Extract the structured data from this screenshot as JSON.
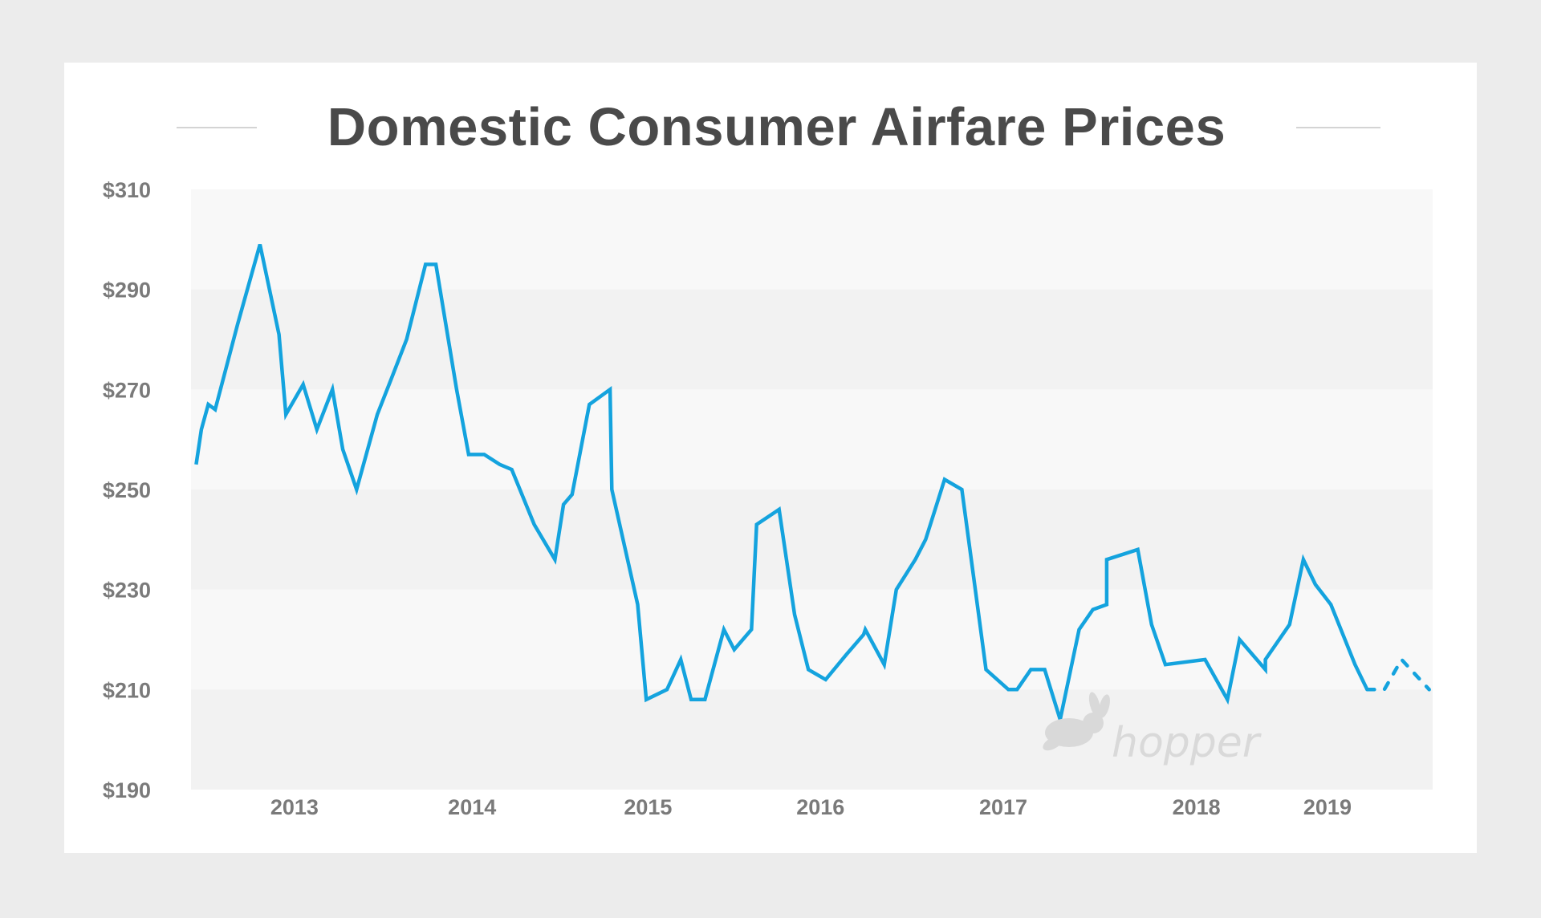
{
  "chart_data": {
    "type": "line",
    "title": "Domestic Consumer Airfare Prices",
    "xlabel": "",
    "ylabel": "",
    "ylim": [
      190,
      310
    ],
    "xlim": [
      2012.35,
      2019.55
    ],
    "y_ticks": [
      {
        "value": 190,
        "label": "$190"
      },
      {
        "value": 210,
        "label": "$210"
      },
      {
        "value": 230,
        "label": "$230"
      },
      {
        "value": 250,
        "label": "$250"
      },
      {
        "value": 270,
        "label": "$270"
      },
      {
        "value": 290,
        "label": "$290"
      },
      {
        "value": 310,
        "label": "$310"
      }
    ],
    "x_ticks": [
      {
        "value": 2012.95,
        "label": "2013"
      },
      {
        "value": 2013.98,
        "label": "2014"
      },
      {
        "value": 2015.0,
        "label": "2015"
      },
      {
        "value": 2016.0,
        "label": "2016"
      },
      {
        "value": 2017.06,
        "label": "2017"
      },
      {
        "value": 2018.18,
        "label": "2018"
      },
      {
        "value": 2018.94,
        "label": "2019"
      }
    ],
    "grid": "alternating horizontal bands",
    "legend": "none",
    "series": [
      {
        "style": "solid",
        "color": "#14a3de",
        "points": [
          [
            2012.38,
            255
          ],
          [
            2012.41,
            262
          ],
          [
            2012.45,
            267
          ],
          [
            2012.49,
            266
          ],
          [
            2012.62,
            283
          ],
          [
            2012.75,
            299
          ],
          [
            2012.86,
            281
          ],
          [
            2012.9,
            265
          ],
          [
            2013.0,
            271
          ],
          [
            2013.08,
            262
          ],
          [
            2013.17,
            270
          ],
          [
            2013.23,
            258
          ],
          [
            2013.31,
            250
          ],
          [
            2013.43,
            265
          ],
          [
            2013.51,
            272
          ],
          [
            2013.6,
            280
          ],
          [
            2013.71,
            295
          ],
          [
            2013.77,
            295
          ],
          [
            2013.89,
            270
          ],
          [
            2013.96,
            257
          ],
          [
            2014.05,
            257
          ],
          [
            2014.14,
            255
          ],
          [
            2014.21,
            254
          ],
          [
            2014.34,
            243
          ],
          [
            2014.46,
            236
          ],
          [
            2014.51,
            247
          ],
          [
            2014.56,
            249
          ],
          [
            2014.66,
            267
          ],
          [
            2014.78,
            270
          ],
          [
            2014.79,
            250
          ],
          [
            2014.94,
            227
          ],
          [
            2014.99,
            208
          ],
          [
            2015.11,
            210
          ],
          [
            2015.19,
            216
          ],
          [
            2015.25,
            208
          ],
          [
            2015.33,
            208
          ],
          [
            2015.44,
            222
          ],
          [
            2015.5,
            218
          ],
          [
            2015.6,
            222
          ],
          [
            2015.63,
            243
          ],
          [
            2015.76,
            246
          ],
          [
            2015.85,
            225
          ],
          [
            2015.93,
            214
          ],
          [
            2016.03,
            212
          ],
          [
            2016.15,
            217
          ],
          [
            2016.25,
            221
          ],
          [
            2016.26,
            222
          ],
          [
            2016.37,
            215
          ],
          [
            2016.44,
            230
          ],
          [
            2016.55,
            236
          ],
          [
            2016.61,
            240
          ],
          [
            2016.72,
            252
          ],
          [
            2016.82,
            250
          ],
          [
            2016.89,
            232
          ],
          [
            2016.96,
            214
          ],
          [
            2017.09,
            210
          ],
          [
            2017.14,
            210
          ],
          [
            2017.22,
            214
          ],
          [
            2017.3,
            214
          ],
          [
            2017.39,
            204
          ],
          [
            2017.5,
            222
          ],
          [
            2017.58,
            226
          ],
          [
            2017.66,
            227
          ],
          [
            2017.66,
            236
          ],
          [
            2017.84,
            238
          ],
          [
            2017.92,
            223
          ],
          [
            2018.0,
            215
          ],
          [
            2018.23,
            216
          ],
          [
            2018.36,
            208
          ],
          [
            2018.43,
            220
          ],
          [
            2018.58,
            214
          ],
          [
            2018.58,
            216
          ],
          [
            2018.72,
            223
          ],
          [
            2018.8,
            236
          ],
          [
            2018.87,
            231
          ],
          [
            2018.96,
            227
          ],
          [
            2019.1,
            215
          ],
          [
            2019.17,
            210
          ]
        ]
      },
      {
        "style": "dashed",
        "color": "#14a3de",
        "points": [
          [
            2019.17,
            210
          ],
          [
            2019.27,
            210
          ],
          [
            2019.37,
            216
          ],
          [
            2019.53,
            210
          ]
        ]
      }
    ],
    "watermark": "hopper"
  }
}
